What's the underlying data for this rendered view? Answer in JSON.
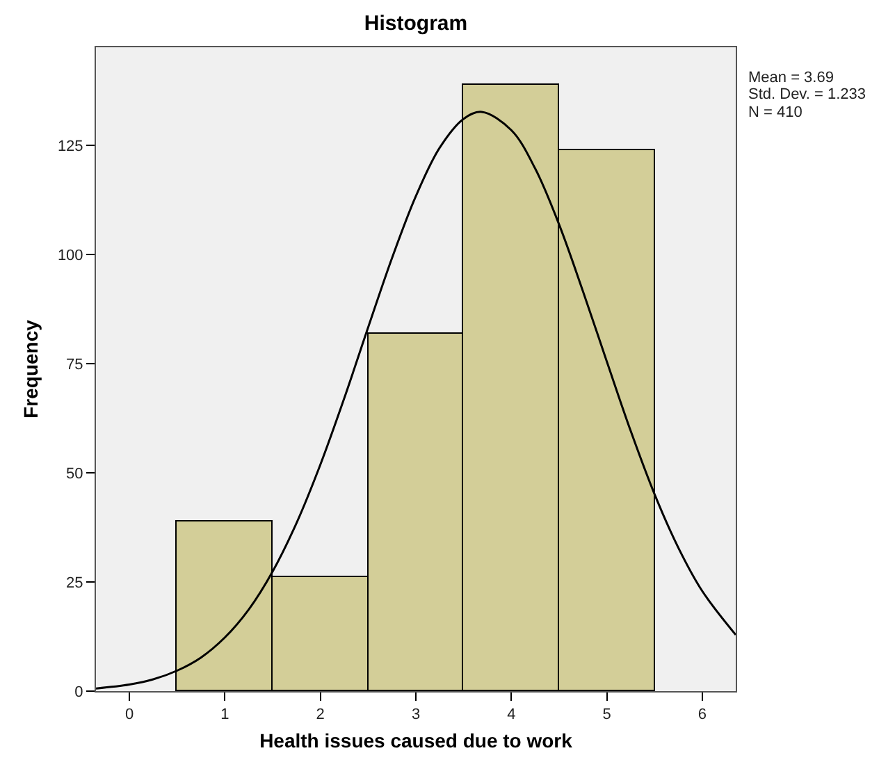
{
  "chart_data": {
    "type": "histogram",
    "title": "Histogram",
    "xlabel": "Health issues caused due to work",
    "ylabel": "Frequency",
    "bins": [
      0.5,
      1.5,
      2.5,
      3.5,
      4.5,
      5.5
    ],
    "values": [
      39,
      26,
      82,
      139,
      124
    ],
    "color": "#d3ce98",
    "series": [
      {
        "type": "line",
        "color": "#000000",
        "x": [
          -0.35,
          0,
          0.25,
          0.5,
          0.75,
          1,
          1.25,
          1.5,
          1.75,
          2,
          2.25,
          2.5,
          2.75,
          3,
          3.25,
          3.5,
          3.69,
          4,
          4.25,
          4.5,
          4.75,
          5,
          5.25,
          5.5,
          5.75,
          6,
          6.35
        ],
        "values": [
          0.6,
          1.5,
          2.7,
          4.7,
          7.7,
          12.3,
          18.7,
          27.4,
          38.5,
          51.9,
          67.1,
          83.3,
          99.2,
          113.4,
          124.5,
          131.1,
          132.7,
          128.5,
          119.7,
          106.9,
          91.6,
          75.5,
          59.6,
          45.1,
          32.8,
          22.9,
          12.9
        ]
      }
    ],
    "annotations": [
      "Mean = 3.69",
      "Std. Dev. = 1.233",
      "N = 410"
    ],
    "xlim": [
      -0.35,
      6.35
    ],
    "xticks": [
      0,
      1,
      2,
      3,
      4,
      5,
      6
    ],
    "ylim": [
      0,
      147.5
    ],
    "yticks": [
      0,
      25,
      50,
      75,
      100,
      125
    ],
    "grid": false
  }
}
